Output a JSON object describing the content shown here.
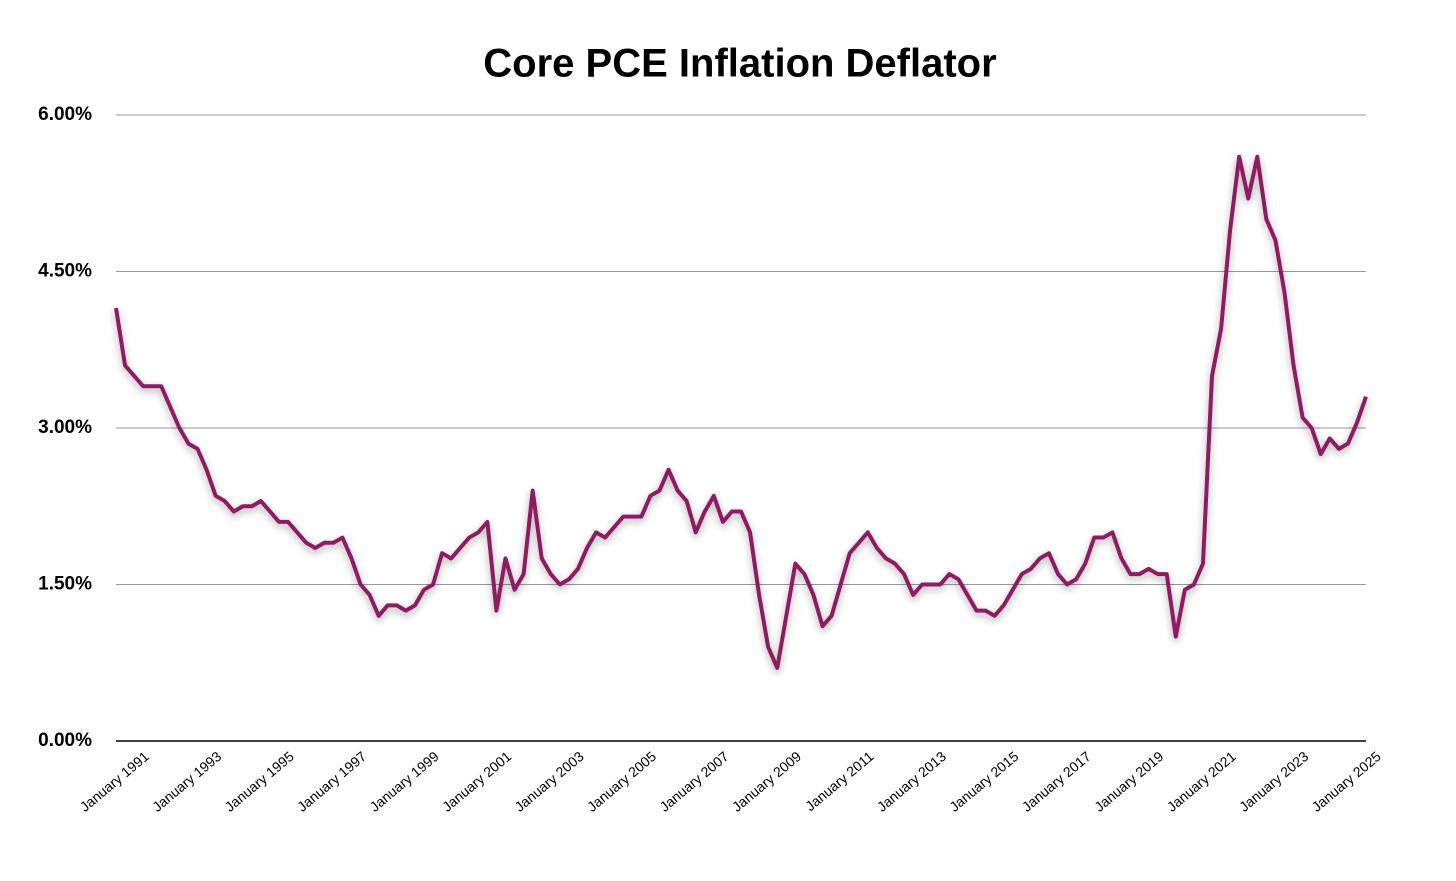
{
  "chart_data": {
    "type": "line",
    "title": "Core PCE Inflation Deflator",
    "categories": [
      "January 1991",
      null,
      null,
      null,
      null,
      null,
      null,
      null,
      "January 1993",
      null,
      null,
      null,
      null,
      null,
      null,
      null,
      "January 1995",
      null,
      null,
      null,
      null,
      null,
      null,
      null,
      "January 1997",
      null,
      null,
      null,
      null,
      null,
      null,
      null,
      "January 1999",
      null,
      null,
      null,
      null,
      null,
      null,
      null,
      "January 2001",
      null,
      null,
      null,
      null,
      null,
      null,
      null,
      "January 2003",
      null,
      null,
      null,
      null,
      null,
      null,
      null,
      "January 2005",
      null,
      null,
      null,
      null,
      null,
      null,
      null,
      "January 2007",
      null,
      null,
      null,
      null,
      null,
      null,
      null,
      "January 2009",
      null,
      null,
      null,
      null,
      null,
      null,
      null,
      "January 2011",
      null,
      null,
      null,
      null,
      null,
      null,
      null,
      "January 2013",
      null,
      null,
      null,
      null,
      null,
      null,
      null,
      "January 2015",
      null,
      null,
      null,
      null,
      null,
      null,
      null,
      "January 2017",
      null,
      null,
      null,
      null,
      null,
      null,
      null,
      "January 2019",
      null,
      null,
      null,
      null,
      null,
      null,
      null,
      "January 2021",
      null,
      null,
      null,
      null,
      null,
      null,
      null,
      "January 2023",
      null,
      null,
      null,
      null,
      null,
      null,
      null,
      "January 2025",
      null,
      null
    ],
    "series": [
      {
        "color": "#8e1b63",
        "values": [
          4.15,
          3.6,
          3.5,
          3.4,
          3.4,
          3.4,
          3.2,
          3.0,
          2.85,
          2.8,
          2.6,
          2.35,
          2.3,
          2.2,
          2.25,
          2.25,
          2.3,
          2.2,
          2.1,
          2.1,
          2.0,
          1.9,
          1.85,
          1.9,
          1.9,
          1.95,
          1.75,
          1.5,
          1.4,
          1.2,
          1.3,
          1.3,
          1.25,
          1.3,
          1.45,
          1.5,
          1.8,
          1.75,
          1.85,
          1.95,
          2.0,
          2.1,
          1.25,
          1.75,
          1.45,
          1.6,
          2.4,
          1.75,
          1.6,
          1.5,
          1.55,
          1.65,
          1.85,
          2.0,
          1.95,
          2.05,
          2.15,
          2.15,
          2.15,
          2.35,
          2.4,
          2.6,
          2.4,
          2.3,
          2.0,
          2.2,
          2.35,
          2.1,
          2.2,
          2.2,
          2.0,
          1.4,
          0.9,
          0.7,
          1.2,
          1.7,
          1.6,
          1.4,
          1.1,
          1.2,
          1.5,
          1.8,
          1.9,
          2.0,
          1.85,
          1.75,
          1.7,
          1.6,
          1.4,
          1.5,
          1.5,
          1.5,
          1.6,
          1.55,
          1.4,
          1.25,
          1.25,
          1.2,
          1.3,
          1.45,
          1.6,
          1.65,
          1.75,
          1.8,
          1.6,
          1.5,
          1.55,
          1.7,
          1.95,
          1.95,
          2.0,
          1.75,
          1.6,
          1.6,
          1.65,
          1.6,
          1.6,
          1.0,
          1.45,
          1.5,
          1.7,
          3.5,
          3.95,
          4.9,
          5.6,
          5.2,
          5.6,
          5.0,
          4.8,
          4.3,
          3.6,
          3.1,
          3.0,
          2.75,
          2.9,
          2.8,
          2.85,
          3.05,
          3.3
        ]
      }
    ],
    "ylim": [
      0,
      6
    ],
    "yticks": [
      {
        "value": 0,
        "label": "0.00%"
      },
      {
        "value": 1.5,
        "label": "1.50%"
      },
      {
        "value": 3,
        "label": "3.00%"
      },
      {
        "value": 4.5,
        "label": "4.50%"
      },
      {
        "value": 6,
        "label": "6.00%"
      }
    ],
    "grid": true
  }
}
